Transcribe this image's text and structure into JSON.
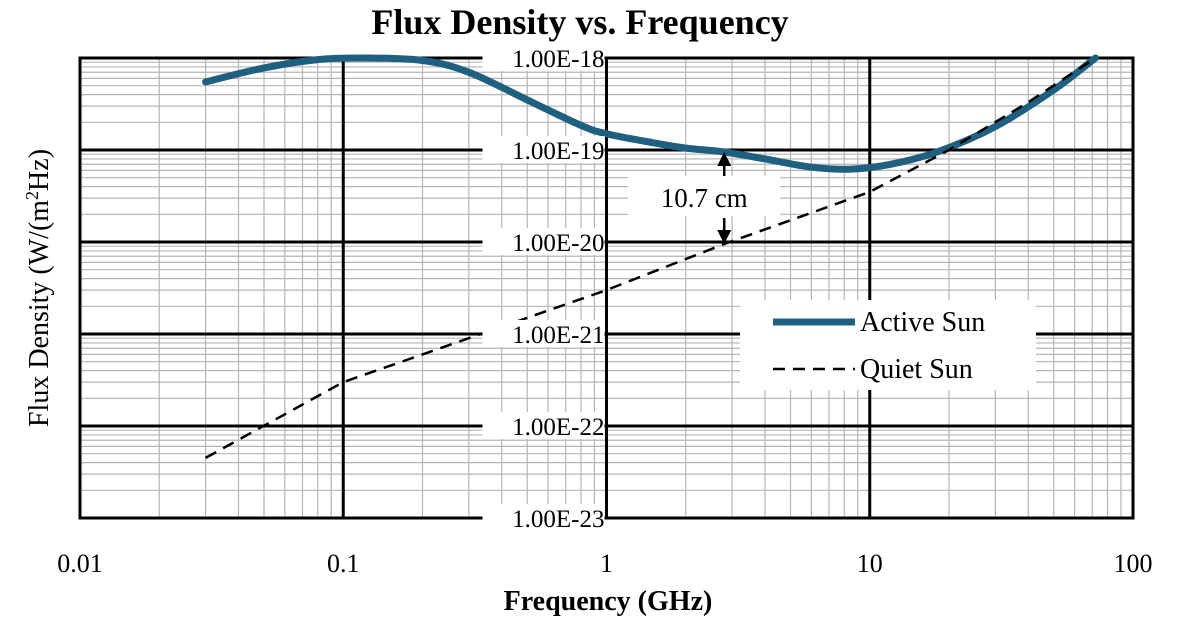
{
  "chart_data": {
    "type": "line",
    "title": "Flux Density vs. Frequency",
    "xlabel": "Frequency (GHz)",
    "ylabel_main": "Flux Density (W/(m",
    "ylabel_sup": "2",
    "ylabel_end": "Hz)",
    "x_scale": "log",
    "y_scale": "log",
    "xlim": [
      0.01,
      100
    ],
    "ylim": [
      1e-23,
      1e-18
    ],
    "x_ticks": [
      0.01,
      0.1,
      1,
      10,
      100
    ],
    "x_tick_labels": [
      "0.01",
      "0.1",
      "1",
      "10",
      "100"
    ],
    "y_ticks": [
      1e-23,
      1e-22,
      1e-21,
      1e-20,
      1e-19,
      1e-18
    ],
    "y_tick_labels": [
      "1.00E-23",
      "1.00E-22",
      "1.00E-21",
      "1.00E-20",
      "1.00E-19",
      "1.00E-18"
    ],
    "grid": true,
    "legend_position": "center-right",
    "series": [
      {
        "name": "Active Sun",
        "style": "solid",
        "color": "#1f5f7f",
        "points": [
          [
            0.03,
            5.5e-19
          ],
          [
            0.05,
            7.8e-19
          ],
          [
            0.08,
            9.6e-19
          ],
          [
            0.12,
            1e-18
          ],
          [
            0.2,
            9.4e-19
          ],
          [
            0.3,
            7e-19
          ],
          [
            0.5,
            3.5e-19
          ],
          [
            0.8,
            1.85e-19
          ],
          [
            1.0,
            1.5e-19
          ],
          [
            1.5,
            1.2e-19
          ],
          [
            2.0,
            1.05e-19
          ],
          [
            2.8,
            9.5e-20
          ],
          [
            4.0,
            8e-20
          ],
          [
            6.0,
            6.5e-20
          ],
          [
            8.5,
            6.2e-20
          ],
          [
            12.0,
            7e-20
          ],
          [
            18.0,
            9.5e-20
          ],
          [
            30.0,
            1.8e-19
          ],
          [
            50.0,
            4.5e-19
          ],
          [
            72.0,
            1e-18
          ]
        ]
      },
      {
        "name": "Quiet Sun",
        "style": "dashed",
        "color": "#000000",
        "points": [
          [
            0.03,
            4.5e-23
          ],
          [
            0.1,
            3e-22
          ],
          [
            1.0,
            3e-21
          ],
          [
            2.8,
            9.5e-21
          ],
          [
            10.0,
            3.5e-20
          ],
          [
            20.0,
            1e-19
          ],
          [
            40.0,
            3.3e-19
          ],
          [
            72.0,
            1e-18
          ]
        ]
      }
    ],
    "annotation": {
      "text": "10.7 cm",
      "x": 2.8,
      "y_top": 9.5e-20,
      "y_bottom": 9.5e-21
    }
  }
}
